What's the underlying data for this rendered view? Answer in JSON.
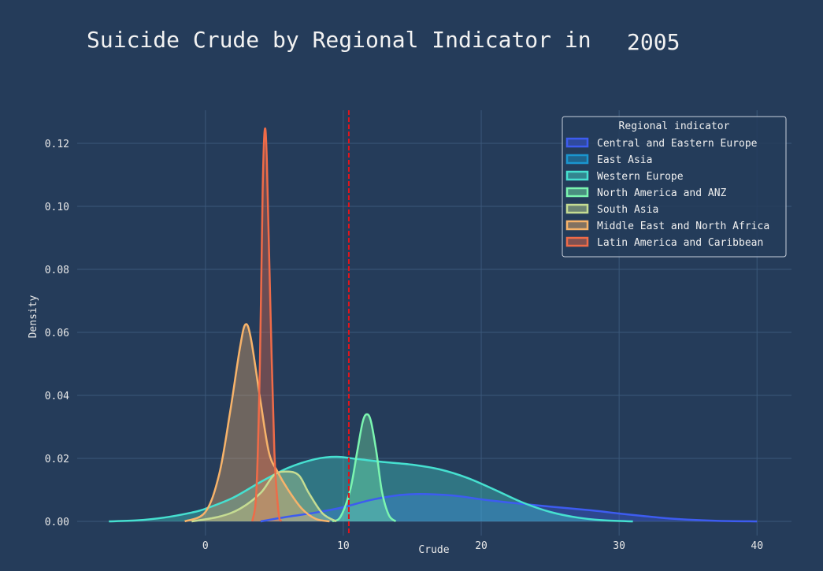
{
  "chart_data": {
    "type": "area",
    "title": "Suicide Crude by Regional Indicator in",
    "title_year": "2005",
    "xlabel": "Crude",
    "ylabel": "Density",
    "xlim": [
      -9.3,
      42.5
    ],
    "ylim": [
      -0.0045,
      0.1305
    ],
    "x_ticks": [
      0,
      10,
      20,
      30,
      40
    ],
    "y_ticks": [
      0.0,
      0.02,
      0.04,
      0.06,
      0.08,
      0.1,
      0.12
    ],
    "x_tick_labels": [
      "0",
      "10",
      "20",
      "30",
      "40"
    ],
    "y_tick_labels": [
      "0.00",
      "0.02",
      "0.04",
      "0.06",
      "0.08",
      "0.10",
      "0.12"
    ],
    "grid": true,
    "reference_line": {
      "x": 10.4,
      "color": "#e0151b",
      "style": "dashed"
    },
    "legend": {
      "title": "Regional indicator",
      "position": "top-right"
    },
    "series": [
      {
        "name": "Central and Eastern Europe",
        "color": "#3d5cf0",
        "points": [
          [
            4,
            0
          ],
          [
            6,
            0.0015
          ],
          [
            8,
            0.0028
          ],
          [
            10,
            0.0045
          ],
          [
            12,
            0.0068
          ],
          [
            14,
            0.0083
          ],
          [
            15.5,
            0.0087
          ],
          [
            18,
            0.0082
          ],
          [
            20,
            0.007
          ],
          [
            22,
            0.006
          ],
          [
            25,
            0.0047
          ],
          [
            28,
            0.0035
          ],
          [
            30,
            0.0025
          ],
          [
            32,
            0.0016
          ],
          [
            34,
            0.0008
          ],
          [
            37,
            0.0002
          ],
          [
            40,
            0
          ]
        ]
      },
      {
        "name": "East Asia",
        "color": "#1a96cf",
        "points": []
      },
      {
        "name": "Western Europe",
        "color": "#46e0d0",
        "points": [
          [
            -7,
            0
          ],
          [
            -5,
            0.0003
          ],
          [
            -3,
            0.0012
          ],
          [
            -1,
            0.0028
          ],
          [
            0,
            0.004
          ],
          [
            2,
            0.0075
          ],
          [
            4,
            0.0125
          ],
          [
            6,
            0.017
          ],
          [
            8,
            0.0198
          ],
          [
            9.5,
            0.0205
          ],
          [
            11,
            0.0198
          ],
          [
            13,
            0.0188
          ],
          [
            15,
            0.018
          ],
          [
            17,
            0.0165
          ],
          [
            19,
            0.0138
          ],
          [
            21,
            0.01
          ],
          [
            23,
            0.006
          ],
          [
            25,
            0.003
          ],
          [
            27,
            0.0012
          ],
          [
            29,
            0.0003
          ],
          [
            31,
            0
          ]
        ]
      },
      {
        "name": "North America and ANZ",
        "color": "#7bf5b0",
        "points": [
          [
            9.2,
            0
          ],
          [
            9.8,
            0.0015
          ],
          [
            10.5,
            0.01
          ],
          [
            11,
            0.022
          ],
          [
            11.4,
            0.0315
          ],
          [
            11.7,
            0.034
          ],
          [
            12,
            0.0318
          ],
          [
            12.4,
            0.022
          ],
          [
            12.8,
            0.0095
          ],
          [
            13.3,
            0.002
          ],
          [
            13.8,
            0
          ]
        ]
      },
      {
        "name": "South Asia",
        "color": "#c5dc92",
        "points": [
          [
            -1,
            0
          ],
          [
            1,
            0.0015
          ],
          [
            2.5,
            0.004
          ],
          [
            4,
            0.009
          ],
          [
            5,
            0.0148
          ],
          [
            6,
            0.0158
          ],
          [
            6.8,
            0.0145
          ],
          [
            7.5,
            0.009
          ],
          [
            8.5,
            0.0025
          ],
          [
            9.5,
            0
          ]
        ]
      },
      {
        "name": "Middle East and North Africa",
        "color": "#f7b36a",
        "points": [
          [
            -1.5,
            0
          ],
          [
            0,
            0.003
          ],
          [
            1,
            0.015
          ],
          [
            1.8,
            0.035
          ],
          [
            2.5,
            0.055
          ],
          [
            2.9,
            0.0625
          ],
          [
            3.3,
            0.058
          ],
          [
            4,
            0.038
          ],
          [
            4.6,
            0.022
          ],
          [
            5.2,
            0.016
          ],
          [
            6,
            0.01
          ],
          [
            7,
            0.004
          ],
          [
            8,
            0.0008
          ],
          [
            9,
            0
          ]
        ]
      },
      {
        "name": "Latin America and Caribbean",
        "color": "#ef6b48",
        "points": [
          [
            3.4,
            0
          ],
          [
            3.7,
            0.01
          ],
          [
            3.95,
            0.05
          ],
          [
            4.15,
            0.105
          ],
          [
            4.3,
            0.1242
          ],
          [
            4.45,
            0.115
          ],
          [
            4.7,
            0.07
          ],
          [
            5,
            0.022
          ],
          [
            5.3,
            0.003
          ],
          [
            5.5,
            0
          ]
        ]
      }
    ]
  }
}
